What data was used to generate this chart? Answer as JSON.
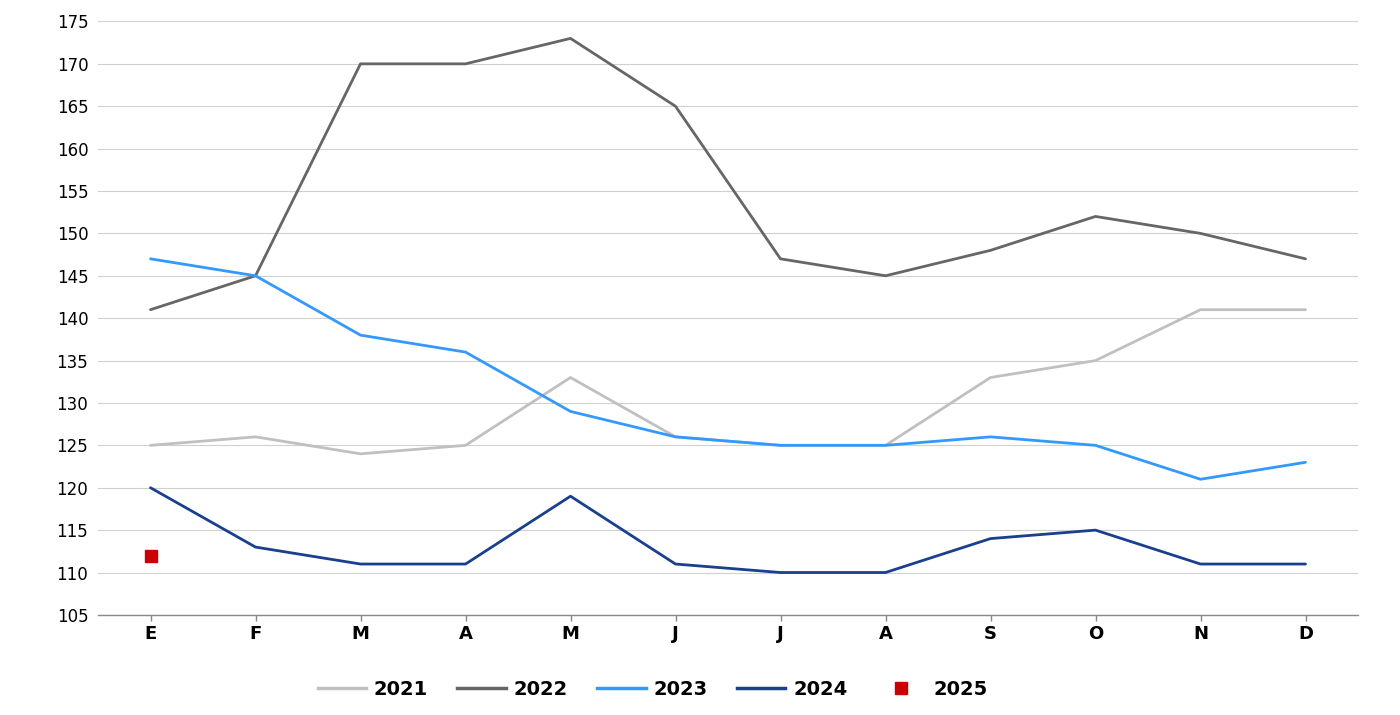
{
  "months": [
    "E",
    "F",
    "M",
    "A",
    "M",
    "J",
    "J",
    "A",
    "S",
    "O",
    "N",
    "D"
  ],
  "series_2021": [
    125,
    126,
    124,
    125,
    133,
    126,
    125,
    125,
    133,
    135,
    141,
    141
  ],
  "series_2022": [
    141,
    145,
    170,
    170,
    173,
    165,
    147,
    145,
    148,
    152,
    150,
    147
  ],
  "series_2023": [
    147,
    145,
    138,
    136,
    129,
    126,
    125,
    125,
    126,
    125,
    121,
    123
  ],
  "series_2024": [
    120,
    113,
    111,
    111,
    119,
    111,
    110,
    110,
    114,
    115,
    111,
    111
  ],
  "series_2025": [
    112,
    null,
    null,
    null,
    null,
    null,
    null,
    null,
    null,
    null,
    null,
    null
  ],
  "color_2021": "#c0c0c0",
  "color_2022": "#666666",
  "color_2023": "#3399ff",
  "color_2024": "#1a3f8f",
  "color_2025": "#cc0000",
  "ylim": [
    105,
    175
  ],
  "yticks": [
    105,
    110,
    115,
    120,
    125,
    130,
    135,
    140,
    145,
    150,
    155,
    160,
    165,
    170,
    175
  ],
  "linewidth": 2.0,
  "legend_labels": [
    "2021",
    "2022",
    "2023",
    "2024",
    "2025"
  ]
}
